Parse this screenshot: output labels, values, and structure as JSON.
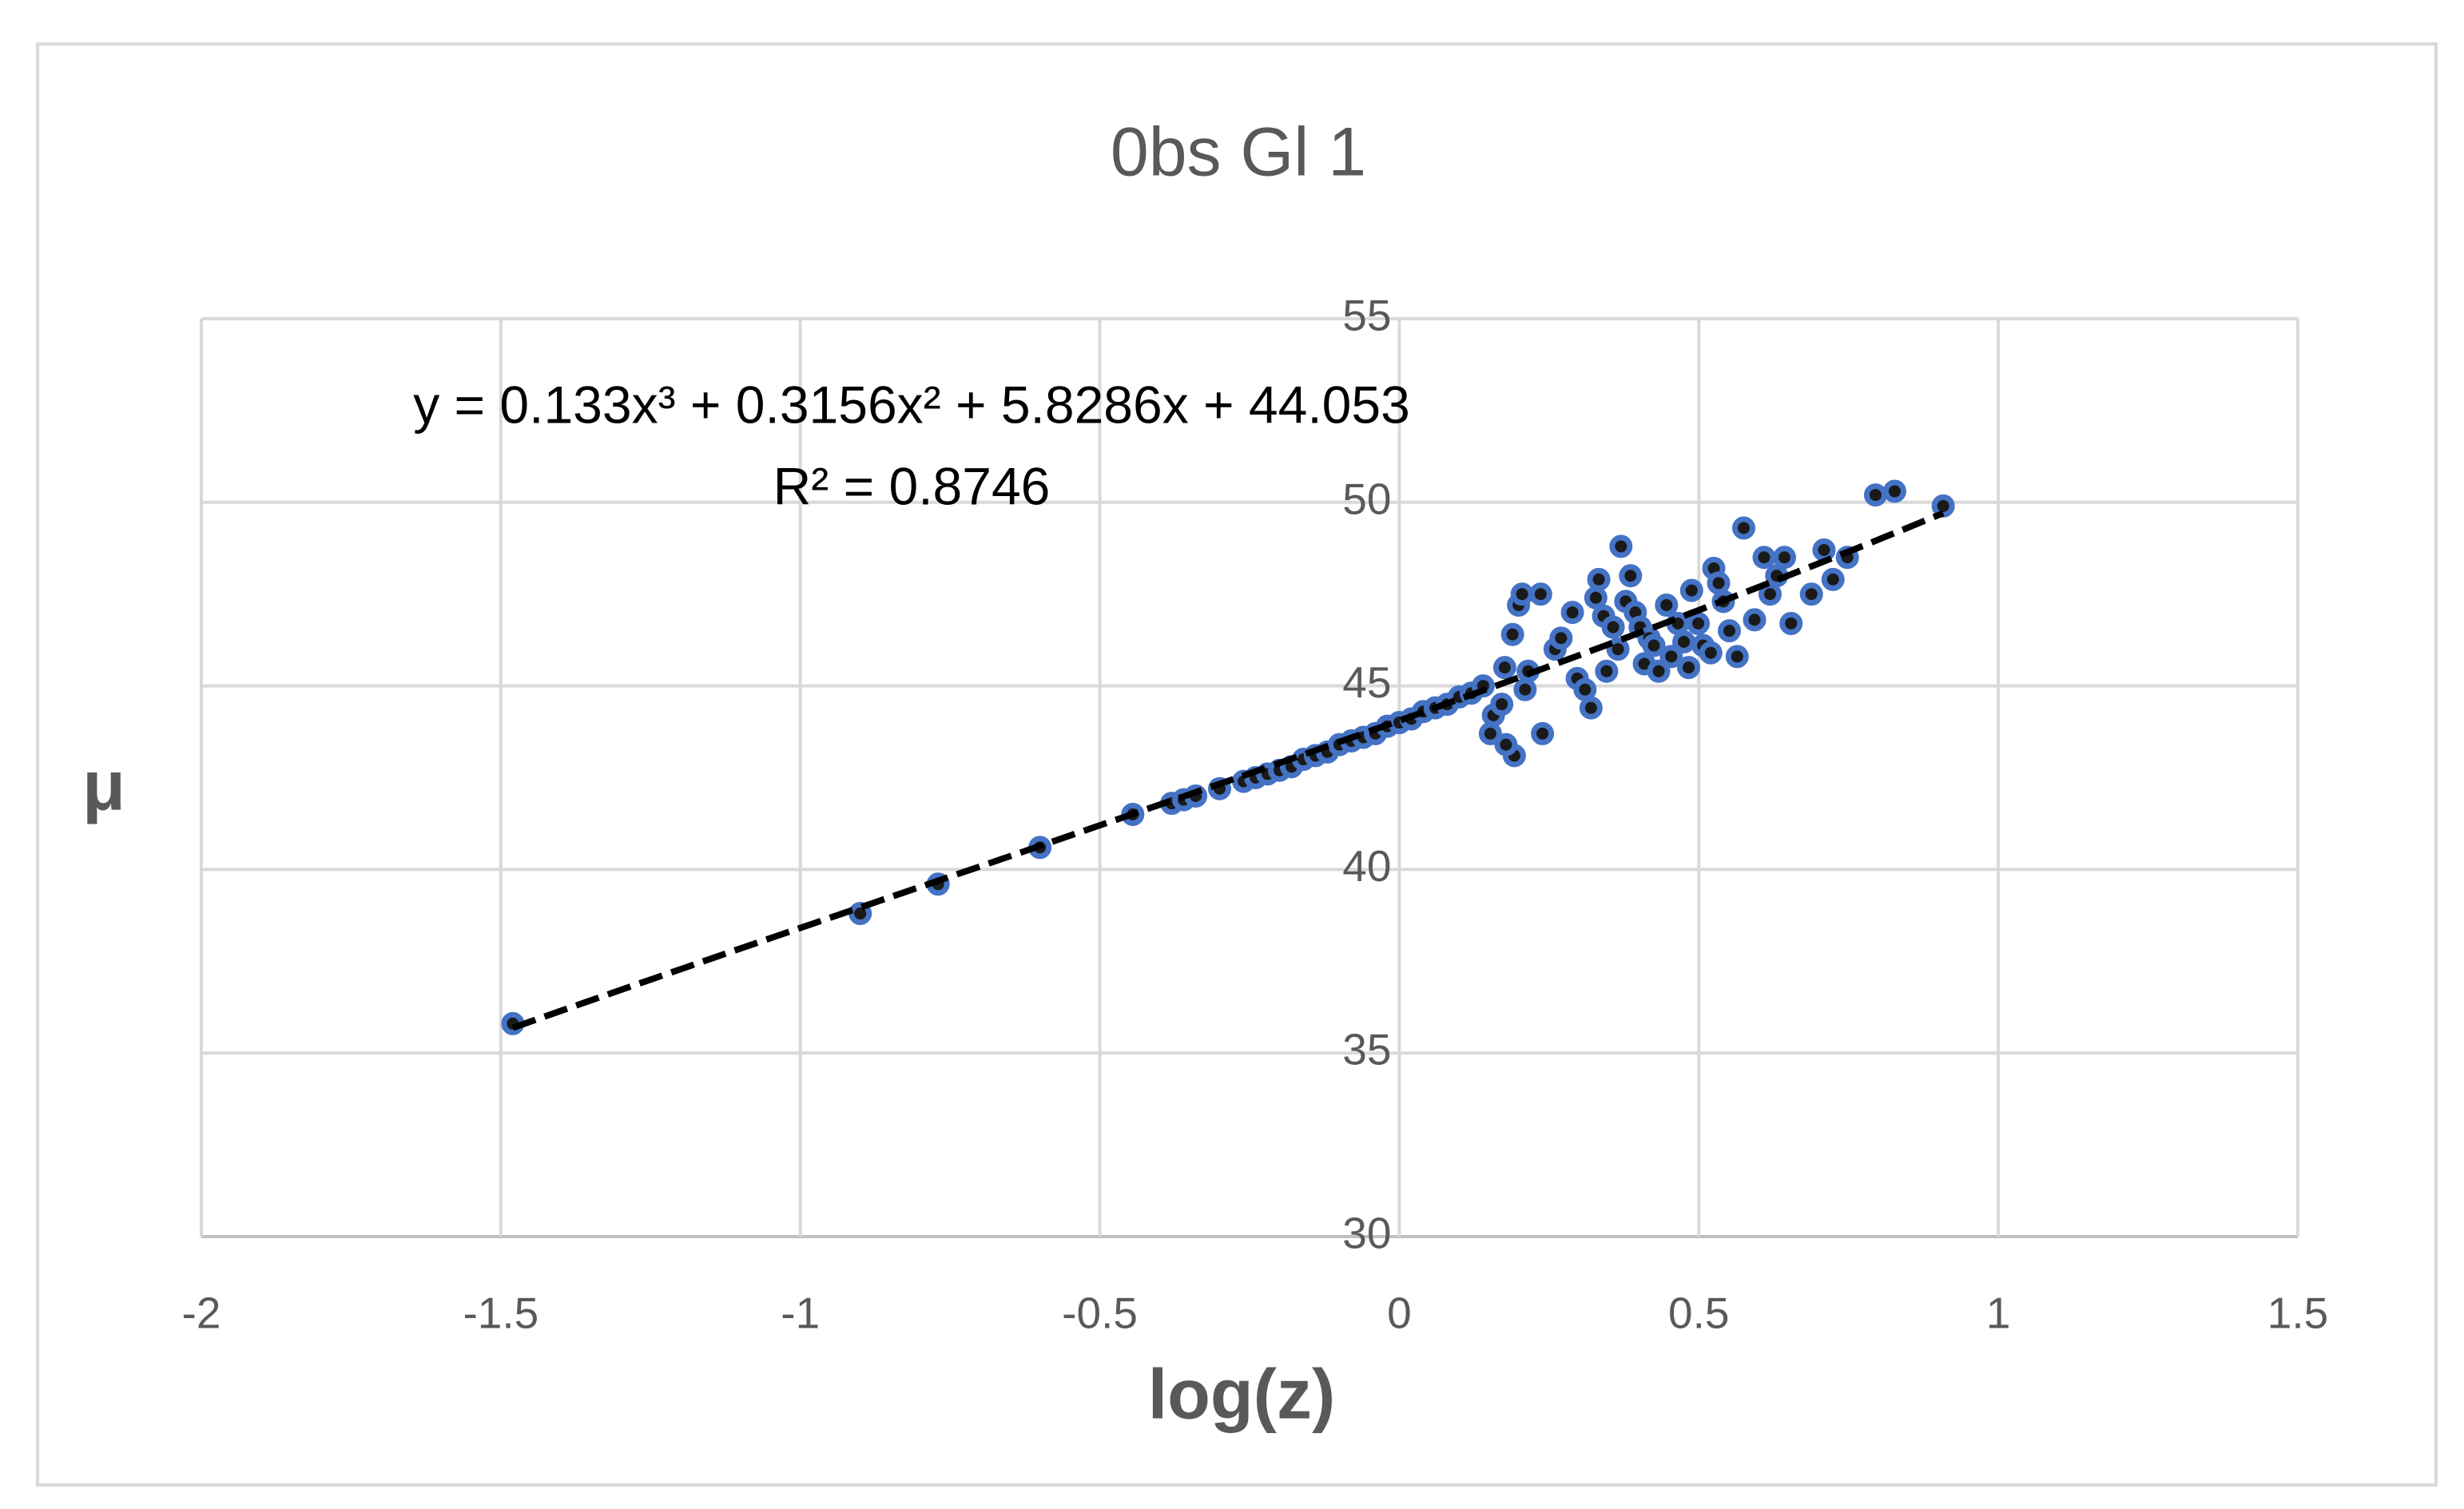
{
  "chart_data": {
    "type": "scatter",
    "title": "0bs Gl 1",
    "x_label": "log(z)",
    "y_label": "μ",
    "xlim": [
      -2,
      1.5
    ],
    "xticks": [
      -2,
      -1.5,
      -1,
      -0.5,
      0,
      0.5,
      1,
      1.5
    ],
    "ylim": [
      30,
      55
    ],
    "yticks": [
      30,
      35,
      40,
      45,
      50,
      55
    ],
    "grid": true,
    "series": [
      {
        "color": "#4472c4",
        "x": [
          -1.48,
          -0.9,
          -0.77,
          -0.6,
          -0.445,
          -0.38,
          -0.36,
          -0.34,
          -0.3,
          -0.26,
          -0.24,
          -0.22,
          -0.2,
          -0.18,
          -0.16,
          -0.14,
          -0.12,
          -0.1,
          -0.08,
          -0.06,
          -0.04,
          -0.02,
          0,
          0.02,
          0.04,
          0.06,
          0.08,
          0.1,
          0.12,
          0.14,
          0.152,
          0.157,
          0.171,
          0.176,
          0.189,
          0.199,
          0.205,
          0.192,
          0.178,
          0.215,
          0.21,
          0.236,
          0.239,
          0.26,
          0.27,
          0.289,
          0.297,
          0.31,
          0.32,
          0.328,
          0.333,
          0.341,
          0.346,
          0.357,
          0.365,
          0.37,
          0.378,
          0.386,
          0.394,
          0.402,
          0.409,
          0.417,
          0.425,
          0.433,
          0.446,
          0.454,
          0.465,
          0.475,
          0.483,
          0.488,
          0.499,
          0.507,
          0.52,
          0.525,
          0.533,
          0.541,
          0.551,
          0.564,
          0.575,
          0.593,
          0.609,
          0.619,
          0.63,
          0.643,
          0.654,
          0.688,
          0.709,
          0.724,
          0.748,
          0.795,
          0.827,
          0.908
        ],
        "values": [
          35.8,
          38.8,
          39.6,
          40.6,
          41.5,
          41.8,
          41.9,
          42.0,
          42.2,
          42.4,
          42.5,
          42.6,
          42.7,
          42.8,
          43.0,
          43.1,
          43.2,
          43.4,
          43.5,
          43.6,
          43.7,
          43.9,
          44.0,
          44.1,
          44.3,
          44.4,
          44.5,
          44.7,
          44.8,
          45.0,
          43.7,
          44.2,
          44.5,
          45.5,
          46.4,
          47.2,
          47.5,
          43.1,
          43.4,
          45.4,
          44.9,
          47.5,
          43.7,
          46.0,
          46.3,
          47.0,
          45.2,
          44.9,
          44.4,
          47.4,
          47.9,
          46.9,
          45.4,
          46.6,
          46.0,
          48.8,
          47.3,
          48.0,
          47.0,
          46.6,
          45.6,
          46.3,
          46.1,
          45.4,
          47.2,
          45.8,
          46.7,
          46.2,
          45.5,
          47.6,
          46.7,
          46.1,
          45.9,
          48.2,
          47.8,
          47.3,
          46.5,
          45.8,
          49.3,
          46.8,
          48.5,
          47.5,
          48.0,
          48.5,
          46.7,
          47.5,
          48.7,
          47.9,
          48.5,
          50.2,
          50.3,
          49.9
        ]
      }
    ],
    "trendline": {
      "coefficients": [
        0.133,
        0.3156,
        5.8286,
        44.053
      ],
      "equation": "y = 0.133x³ + 0.3156x² + 5.8286x + 44.053",
      "r_squared": "R² = 0.8746"
    }
  }
}
